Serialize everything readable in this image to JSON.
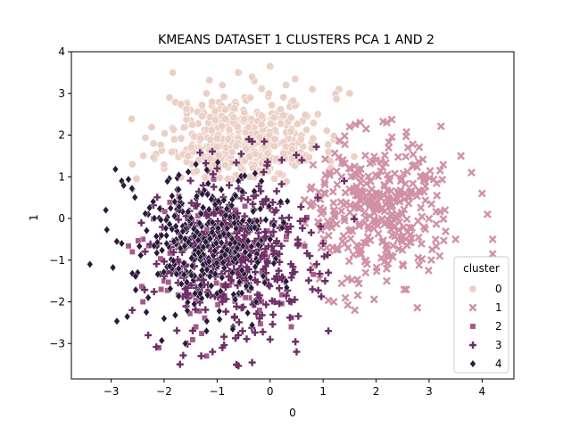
{
  "chart_data": {
    "type": "scatter",
    "title": "KMEANS DATASET 1 CLUSTERS PCA 1 AND 2",
    "xlabel": "0",
    "ylabel": "1",
    "xlim": [
      -3.75,
      4.6
    ],
    "ylim": [
      -3.85,
      4.0
    ],
    "xticks": [
      -3,
      -2,
      -1,
      0,
      1,
      2,
      3,
      4
    ],
    "yticks": [
      -3,
      -2,
      -1,
      0,
      1,
      2,
      3,
      4
    ],
    "grid": false,
    "legend": {
      "title": "cluster",
      "placement": "lower right"
    },
    "series": [
      {
        "name": "0",
        "marker": "circle",
        "color": "#ebd0c6",
        "sample_points": [
          [
            -2.6,
            1.3
          ],
          [
            -2.2,
            1.8
          ],
          [
            -1.9,
            2.9
          ],
          [
            -1.5,
            2.6
          ],
          [
            -1.2,
            3.0
          ],
          [
            -0.9,
            3.2
          ],
          [
            -0.6,
            3.5
          ],
          [
            -0.3,
            3.3
          ],
          [
            0,
            3.65
          ],
          [
            0.3,
            3.2
          ],
          [
            0.8,
            3.1
          ],
          [
            1.3,
            3.1
          ],
          [
            1.5,
            3.0
          ],
          [
            -1.8,
            1.6
          ],
          [
            -1.0,
            2.2
          ],
          [
            -0.5,
            2.6
          ],
          [
            0.2,
            2.4
          ],
          [
            0.6,
            2.0
          ],
          [
            1.1,
            1.6
          ],
          [
            -2.0,
            1.2
          ],
          [
            -1.4,
            1.1
          ],
          [
            -0.8,
            1.4
          ],
          [
            0.0,
            1.2
          ],
          [
            0.6,
            1.4
          ],
          [
            1.2,
            1.9
          ],
          [
            -1.1,
            2.7
          ],
          [
            -0.2,
            1.8
          ],
          [
            0.4,
            2.8
          ],
          [
            -1.6,
            2.2
          ],
          [
            0.9,
            2.5
          ]
        ],
        "generator": {
          "cx": -0.5,
          "cy": 1.9,
          "sx": 0.75,
          "sy": 0.55,
          "n": 420,
          "xmin": -2.8,
          "xmax": 1.6,
          "ymin": 0.8,
          "ymax": 3.7,
          "seed": 11
        }
      },
      {
        "name": "1",
        "marker": "x",
        "color": "#d191a5",
        "sample_points": [
          [
            3.6,
            1.5
          ],
          [
            3.8,
            1.1
          ],
          [
            4.0,
            0.6
          ],
          [
            4.1,
            0.1
          ],
          [
            4.2,
            -0.5
          ],
          [
            4.2,
            -0.85
          ],
          [
            2.6,
            1.7
          ],
          [
            2.2,
            2.3
          ],
          [
            1.7,
            2.3
          ],
          [
            1.5,
            2.2
          ],
          [
            3.2,
            -0.9
          ],
          [
            2.5,
            -1.1
          ],
          [
            2.2,
            -1.5
          ],
          [
            1.6,
            -2.2
          ],
          [
            1.2,
            -2.0
          ],
          [
            3.5,
            -0.5
          ],
          [
            3.3,
            0.2
          ],
          [
            2.9,
            0.9
          ],
          [
            2.0,
            1.4
          ],
          [
            1.0,
            0.2
          ]
        ],
        "generator": {
          "cx": 1.9,
          "cy": 0.2,
          "sx": 0.75,
          "sy": 0.85,
          "n": 360,
          "xmin": 0.6,
          "xmax": 3.4,
          "ymin": -2.3,
          "ymax": 2.4,
          "seed": 23
        }
      },
      {
        "name": "2",
        "marker": "square",
        "color": "#a45b8a",
        "sample_points": [
          [
            -2.6,
            -0.8
          ],
          [
            -2.4,
            -0.5
          ],
          [
            -2.0,
            -1.5
          ],
          [
            -1.7,
            -1.2
          ],
          [
            -1.3,
            -0.9
          ],
          [
            -0.9,
            -1.6
          ],
          [
            -0.5,
            -1.0
          ],
          [
            -0.2,
            -2.2
          ],
          [
            0.3,
            -0.5
          ],
          [
            -2.1,
            -3.1
          ],
          [
            -1.2,
            -3.3
          ],
          [
            -1.4,
            -2.6
          ],
          [
            -0.8,
            -0.6
          ],
          [
            0.4,
            -2.6
          ],
          [
            -2.4,
            -2.0
          ]
        ],
        "generator": {
          "cx": -0.9,
          "cy": -1.0,
          "sx": 0.75,
          "sy": 0.8,
          "n": 90,
          "xmin": -2.7,
          "xmax": 1.0,
          "ymin": -3.4,
          "ymax": 1.0,
          "seed": 37
        }
      },
      {
        "name": "3",
        "marker": "plus",
        "color": "#6b2f65",
        "sample_points": [
          [
            -1.7,
            -3.5
          ],
          [
            -1.3,
            -3.3
          ],
          [
            -0.9,
            -3.1
          ],
          [
            -0.6,
            -2.8
          ],
          [
            -0.2,
            -2.4
          ],
          [
            0.4,
            -2.0
          ],
          [
            0.8,
            -1.7
          ],
          [
            1.1,
            -1.3
          ],
          [
            1.0,
            -0.6
          ],
          [
            0.9,
            0.5
          ],
          [
            0.6,
            1.4
          ],
          [
            -0.4,
            1.9
          ],
          [
            -1.0,
            1.2
          ],
          [
            -1.4,
            0.3
          ],
          [
            -2.1,
            -0.6
          ],
          [
            -2.6,
            -2.2
          ],
          [
            -2.3,
            -2.8
          ],
          [
            0.5,
            -3.2
          ],
          [
            1.1,
            -2.7
          ],
          [
            1.4,
            0.9
          ]
        ],
        "generator": {
          "cx": -0.6,
          "cy": -0.9,
          "sx": 0.8,
          "sy": 1.0,
          "n": 420,
          "xmin": -2.6,
          "xmax": 1.6,
          "ymin": -3.6,
          "ymax": 2.0,
          "seed": 53
        }
      },
      {
        "name": "4",
        "marker": "diamond",
        "color": "#2a1a3a",
        "sample_points": [
          [
            -3.4,
            -1.1
          ],
          [
            -3.1,
            0.2
          ],
          [
            -2.8,
            0.9
          ],
          [
            -2.6,
            0.7
          ],
          [
            -2.8,
            -0.6
          ],
          [
            -2.5,
            -1.3
          ],
          [
            -2.3,
            -1.9
          ],
          [
            -2.0,
            -2.4
          ],
          [
            -1.6,
            -3.0
          ],
          [
            -1.2,
            -2.7
          ],
          [
            -0.7,
            -2.6
          ],
          [
            -0.4,
            -1.6
          ],
          [
            0.0,
            -0.5
          ],
          [
            0.2,
            0.4
          ],
          [
            -0.6,
            0.9
          ],
          [
            -1.4,
            1.3
          ],
          [
            -1.8,
            0.4
          ],
          [
            -2.3,
            0.1
          ],
          [
            -1.0,
            -1.8
          ],
          [
            -0.3,
            0.2
          ]
        ],
        "generator": {
          "cx": -1.2,
          "cy": -0.6,
          "sx": 0.7,
          "sy": 0.85,
          "n": 330,
          "xmin": -3.4,
          "xmax": 0.4,
          "ymin": -3.1,
          "ymax": 1.4,
          "seed": 71
        }
      }
    ]
  }
}
